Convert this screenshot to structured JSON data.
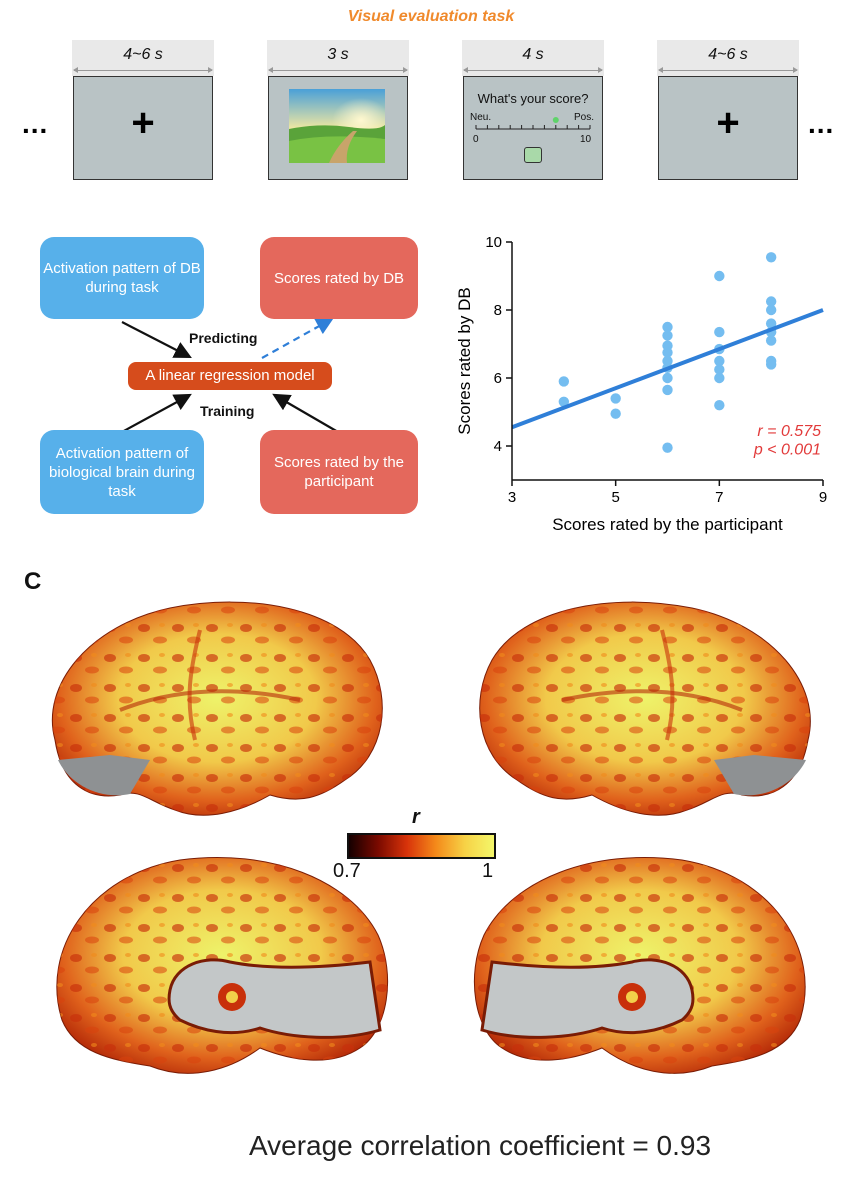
{
  "task": {
    "title": "Visual evaluation task",
    "ellipsis": "...",
    "frames": [
      {
        "duration": "4~6 s",
        "content": "fixation-cross",
        "symbol": "+"
      },
      {
        "duration": "3 s",
        "content": "landscape-image"
      },
      {
        "duration": "4 s",
        "content": "rating-scale",
        "question": "What's your score?",
        "left_anchor": "Neu.",
        "right_anchor": "Pos.",
        "scale_min": "0",
        "scale_max": "10"
      },
      {
        "duration": "4~6 s",
        "content": "fixation-cross",
        "symbol": "+"
      }
    ]
  },
  "flow": {
    "activation_db": "Activation pattern of DB during task",
    "scores_db": "Scores rated by DB",
    "model": "A linear regression model",
    "activation_bio": "Activation pattern of biological brain during task",
    "scores_participant": "Scores rated by the participant",
    "predicting": "Predicting",
    "training": "Training"
  },
  "chart_data": {
    "type": "scatter",
    "xlabel": "Scores rated by the participant",
    "ylabel": "Scores rated by DB",
    "xlim": [
      3,
      9
    ],
    "ylim": [
      3,
      10
    ],
    "xticks": [
      3,
      5,
      7,
      9
    ],
    "yticks": [
      4,
      6,
      8,
      10
    ],
    "points": [
      {
        "x": 4,
        "y": 5.9
      },
      {
        "x": 4,
        "y": 5.3
      },
      {
        "x": 5,
        "y": 5.4
      },
      {
        "x": 5,
        "y": 4.95
      },
      {
        "x": 6,
        "y": 7.5
      },
      {
        "x": 6,
        "y": 7.25
      },
      {
        "x": 6,
        "y": 6.95
      },
      {
        "x": 6,
        "y": 6.75
      },
      {
        "x": 6,
        "y": 6.5
      },
      {
        "x": 6,
        "y": 6.3
      },
      {
        "x": 6,
        "y": 6.0
      },
      {
        "x": 6,
        "y": 5.65
      },
      {
        "x": 6,
        "y": 3.95
      },
      {
        "x": 7,
        "y": 9.0
      },
      {
        "x": 7,
        "y": 7.35
      },
      {
        "x": 7,
        "y": 6.85
      },
      {
        "x": 7,
        "y": 6.5
      },
      {
        "x": 7,
        "y": 6.25
      },
      {
        "x": 7,
        "y": 6.0
      },
      {
        "x": 7,
        "y": 5.2
      },
      {
        "x": 8,
        "y": 9.55
      },
      {
        "x": 8,
        "y": 8.25
      },
      {
        "x": 8,
        "y": 8.0
      },
      {
        "x": 8,
        "y": 7.6
      },
      {
        "x": 8,
        "y": 7.35
      },
      {
        "x": 8,
        "y": 7.1
      },
      {
        "x": 8,
        "y": 6.5
      },
      {
        "x": 8,
        "y": 6.4
      }
    ],
    "fit_line": {
      "x": [
        3,
        9
      ],
      "y": [
        4.55,
        8.0
      ]
    },
    "point_color": "#74bdf0",
    "line_color": "#2f7fd8",
    "stats_color": "#e23a3a",
    "r_text": "r = 0.575",
    "p_text": "p < 0.001"
  },
  "panel_c": {
    "label": "C",
    "colorbar_title": "r",
    "colorbar_min": "0.7",
    "colorbar_max": "1",
    "average_text": "Average correlation coefficient = 0.93"
  }
}
